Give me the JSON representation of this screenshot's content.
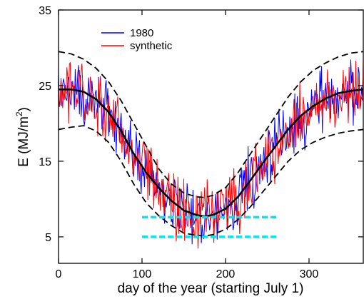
{
  "chart_data": {
    "type": "line",
    "xlabel": "day of the year (starting July 1)",
    "ylabel_main": "E (MJ/m",
    "ylabel_sup": "2",
    "ylabel_close": ")",
    "xlim": [
      0,
      365
    ],
    "ylim": [
      1.5,
      35
    ],
    "x_ticks": [
      0,
      100,
      200,
      300
    ],
    "y_ticks": [
      5,
      15,
      25,
      35
    ],
    "grid": false,
    "legend": {
      "position": "top-left",
      "entries": [
        {
          "label": "1980",
          "color": "#0000ff"
        },
        {
          "label": "synthetic",
          "color": "#ff0000"
        }
      ]
    },
    "series": [
      {
        "name": "1980",
        "color": "#0000ff",
        "kind": "daily-noisy",
        "mean_curve": [
          [
            0,
            24.5
          ],
          [
            30,
            24.2
          ],
          [
            60,
            21.5
          ],
          [
            90,
            16.0
          ],
          [
            120,
            11.5
          ],
          [
            150,
            8.5
          ],
          [
            175,
            7.7
          ],
          [
            200,
            8.7
          ],
          [
            230,
            12.5
          ],
          [
            260,
            17.0
          ],
          [
            290,
            21.0
          ],
          [
            320,
            23.3
          ],
          [
            350,
            24.3
          ],
          [
            365,
            24.5
          ]
        ],
        "spread": 3.5
      },
      {
        "name": "synthetic",
        "color": "#ff0000",
        "kind": "daily-noisy",
        "mean_curve": [
          [
            0,
            24.5
          ],
          [
            30,
            24.2
          ],
          [
            60,
            21.5
          ],
          [
            90,
            16.0
          ],
          [
            120,
            11.5
          ],
          [
            150,
            8.5
          ],
          [
            175,
            7.7
          ],
          [
            200,
            8.7
          ],
          [
            230,
            12.5
          ],
          [
            260,
            17.0
          ],
          [
            290,
            21.0
          ],
          [
            320,
            23.3
          ],
          [
            350,
            24.3
          ],
          [
            365,
            24.5
          ]
        ],
        "spread": 3.8
      },
      {
        "role": "mean",
        "color": "#000000",
        "style": "solid",
        "points": [
          [
            0,
            24.5
          ],
          [
            15,
            24.5
          ],
          [
            30,
            24.2
          ],
          [
            45,
            23.2
          ],
          [
            60,
            21.5
          ],
          [
            75,
            19.0
          ],
          [
            90,
            16.0
          ],
          [
            105,
            13.5
          ],
          [
            120,
            11.5
          ],
          [
            135,
            9.8
          ],
          [
            150,
            8.5
          ],
          [
            165,
            7.9
          ],
          [
            175,
            7.7
          ],
          [
            185,
            7.9
          ],
          [
            200,
            8.7
          ],
          [
            215,
            10.3
          ],
          [
            230,
            12.5
          ],
          [
            245,
            14.8
          ],
          [
            260,
            17.0
          ],
          [
            275,
            19.2
          ],
          [
            290,
            21.0
          ],
          [
            305,
            22.3
          ],
          [
            320,
            23.3
          ],
          [
            335,
            24.0
          ],
          [
            350,
            24.3
          ],
          [
            365,
            24.5
          ]
        ]
      },
      {
        "role": "upper-bound",
        "color": "#000000",
        "style": "dashed",
        "points": [
          [
            0,
            29.5
          ],
          [
            15,
            29.2
          ],
          [
            30,
            28.5
          ],
          [
            45,
            27.3
          ],
          [
            60,
            25.5
          ],
          [
            75,
            23.0
          ],
          [
            90,
            20.0
          ],
          [
            105,
            17.0
          ],
          [
            120,
            14.0
          ],
          [
            135,
            12.0
          ],
          [
            150,
            10.8
          ],
          [
            165,
            10.3
          ],
          [
            175,
            10.2
          ],
          [
            185,
            10.5
          ],
          [
            200,
            11.5
          ],
          [
            215,
            13.5
          ],
          [
            230,
            16.0
          ],
          [
            245,
            18.5
          ],
          [
            260,
            21.0
          ],
          [
            275,
            23.5
          ],
          [
            290,
            25.5
          ],
          [
            305,
            27.0
          ],
          [
            320,
            28.0
          ],
          [
            335,
            28.8
          ],
          [
            350,
            29.3
          ],
          [
            365,
            29.5
          ]
        ]
      },
      {
        "role": "lower-bound",
        "color": "#000000",
        "style": "dashed",
        "points": [
          [
            0,
            19.2
          ],
          [
            15,
            19.5
          ],
          [
            30,
            19.7
          ],
          [
            45,
            19.0
          ],
          [
            60,
            17.5
          ],
          [
            75,
            15.0
          ],
          [
            90,
            12.0
          ],
          [
            105,
            9.5
          ],
          [
            120,
            7.8
          ],
          [
            135,
            6.5
          ],
          [
            150,
            5.5
          ],
          [
            165,
            5.2
          ],
          [
            175,
            5.1
          ],
          [
            185,
            5.3
          ],
          [
            200,
            6.0
          ],
          [
            215,
            7.3
          ],
          [
            230,
            9.0
          ],
          [
            245,
            11.0
          ],
          [
            260,
            13.0
          ],
          [
            275,
            15.0
          ],
          [
            290,
            16.5
          ],
          [
            305,
            17.5
          ],
          [
            320,
            18.2
          ],
          [
            335,
            18.7
          ],
          [
            350,
            19.0
          ],
          [
            365,
            19.2
          ]
        ]
      },
      {
        "role": "threshold",
        "color": "#00e5ee",
        "style": "dashed",
        "points": [
          [
            100,
            7.6
          ],
          [
            262,
            7.6
          ]
        ]
      },
      {
        "role": "threshold",
        "color": "#00e5ee",
        "style": "dashed",
        "points": [
          [
            100,
            5.0
          ],
          [
            262,
            5.0
          ]
        ]
      }
    ]
  }
}
